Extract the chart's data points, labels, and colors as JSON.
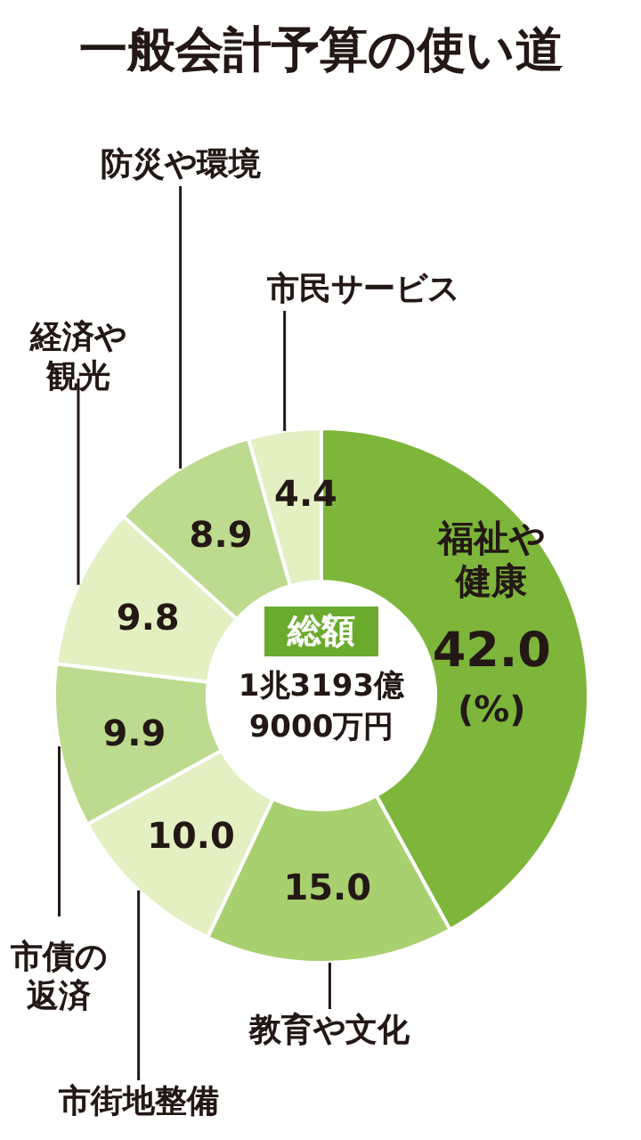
{
  "chart_data": {
    "type": "donut",
    "title": "一般会計予算の使い道",
    "categories": [
      "福祉や健康",
      "教育や文化",
      "市街地整備",
      "市債の返済",
      "経済や観光",
      "防災や環境",
      "市民サービス"
    ],
    "values": [
      42.0,
      15.0,
      10.0,
      9.9,
      9.8,
      8.9,
      4.4
    ],
    "colors": [
      "#7db63a",
      "#a8d06e",
      "#e4efc2",
      "#bcdb8e",
      "#e4efc2",
      "#bcdb8e",
      "#e4efc2"
    ],
    "value_labels": [
      "42.0",
      "15.0",
      "10.0",
      "9.9",
      "9.8",
      "8.9",
      "4.4"
    ],
    "annotations": [
      "総額",
      "1兆3193億9000万円",
      "(%)"
    ]
  }
}
